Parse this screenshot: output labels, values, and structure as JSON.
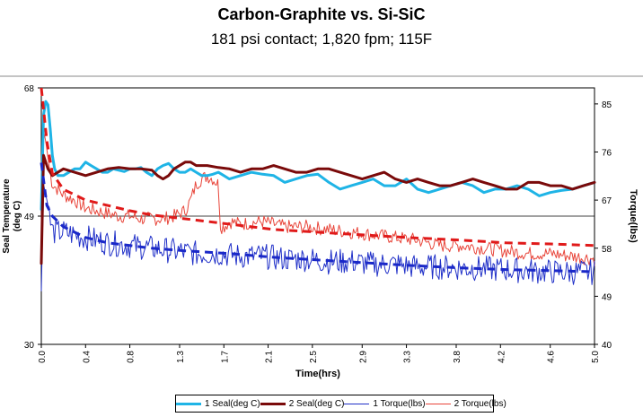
{
  "chart_data": {
    "type": "line",
    "title": "Carbon-Graphite vs. Si-SiC",
    "subtitle": "181 psi contact; 1,820 fpm; 115F",
    "xlabel": "Time(hrs)",
    "ylabel": "Seal Temperature\n(deg C)",
    "ylabel_lines": [
      "Seal Temperature",
      "(deg C)"
    ],
    "y2label": "Torque(lbs)",
    "xlim": [
      0,
      5.0
    ],
    "ylim": [
      30,
      68
    ],
    "y2lim": [
      40,
      88
    ],
    "x_ticks": [
      "0.0",
      "0.4",
      "0.8",
      "1.3",
      "1.7",
      "2.1",
      "2.5",
      "2.9",
      "3.3",
      "3.8",
      "4.2",
      "4.6",
      "5.0"
    ],
    "x_tick_values": [
      0.0,
      0.4,
      0.8,
      1.25,
      1.65,
      2.05,
      2.45,
      2.9,
      3.3,
      3.75,
      4.15,
      4.6,
      5.0
    ],
    "y_ticks": [
      "30",
      "49",
      "68"
    ],
    "y_tick_values": [
      30,
      49,
      68
    ],
    "y2_ticks": [
      "40",
      "49",
      "58",
      "67",
      "76",
      "85"
    ],
    "y2_tick_values": [
      40,
      49,
      58,
      67,
      76,
      85
    ],
    "grid_y": [
      49,
      68
    ],
    "series": [
      {
        "name": "1 Seal(deg C)",
        "axis": "left",
        "color": "#1fb4e6",
        "width": 3,
        "style": "solid",
        "x": [
          0,
          0.02,
          0.04,
          0.06,
          0.08,
          0.1,
          0.12,
          0.15,
          0.2,
          0.25,
          0.3,
          0.35,
          0.4,
          0.45,
          0.5,
          0.55,
          0.6,
          0.65,
          0.7,
          0.75,
          0.8,
          0.85,
          0.9,
          0.95,
          1.0,
          1.05,
          1.1,
          1.15,
          1.2,
          1.25,
          1.3,
          1.35,
          1.4,
          1.45,
          1.5,
          1.55,
          1.6,
          1.65,
          1.7,
          1.8,
          1.9,
          2.0,
          2.1,
          2.2,
          2.3,
          2.4,
          2.5,
          2.6,
          2.7,
          2.8,
          2.9,
          3.0,
          3.1,
          3.2,
          3.3,
          3.4,
          3.5,
          3.6,
          3.7,
          3.8,
          3.9,
          4.0,
          4.1,
          4.2,
          4.3,
          4.4,
          4.5,
          4.6,
          4.7,
          4.8,
          4.9,
          5.0
        ],
        "y": [
          50,
          64,
          66,
          65.5,
          62,
          58,
          56,
          55,
          55,
          55.5,
          56,
          56,
          57,
          56.5,
          56,
          55.5,
          55.5,
          56,
          55.8,
          55.6,
          56,
          56,
          56.2,
          55.5,
          55,
          56,
          56.5,
          56.8,
          56,
          55.5,
          55.5,
          56,
          55.5,
          55,
          55,
          55.2,
          55.5,
          55,
          54.5,
          55,
          55.5,
          55.2,
          55,
          54,
          54.5,
          55,
          55.2,
          54,
          53,
          53.5,
          54,
          54.5,
          53.5,
          53.5,
          54.5,
          53,
          52.5,
          53,
          53.5,
          54,
          53.5,
          52.5,
          53,
          53,
          53.5,
          53,
          52,
          52.5,
          52.8,
          53,
          53.5,
          54
        ]
      },
      {
        "name": "2 Seal(deg C)",
        "axis": "left",
        "color": "#7a0a0a",
        "width": 3,
        "style": "solid",
        "x": [
          0,
          0.02,
          0.04,
          0.06,
          0.08,
          0.1,
          0.15,
          0.2,
          0.3,
          0.4,
          0.5,
          0.6,
          0.7,
          0.8,
          0.9,
          1.0,
          1.05,
          1.1,
          1.15,
          1.2,
          1.25,
          1.3,
          1.35,
          1.4,
          1.5,
          1.6,
          1.7,
          1.8,
          1.9,
          2.0,
          2.1,
          2.2,
          2.3,
          2.4,
          2.5,
          2.6,
          2.7,
          2.8,
          2.9,
          3.0,
          3.1,
          3.2,
          3.3,
          3.4,
          3.5,
          3.6,
          3.7,
          3.8,
          3.9,
          4.0,
          4.1,
          4.2,
          4.3,
          4.4,
          4.5,
          4.6,
          4.7,
          4.8,
          4.9,
          5.0
        ],
        "y": [
          42,
          58,
          57,
          56,
          55.5,
          55,
          55.5,
          56,
          55.5,
          55,
          55.5,
          56,
          56.2,
          56,
          56,
          55.8,
          55,
          54.5,
          55,
          56,
          56.5,
          57,
          57,
          56.5,
          56.5,
          56.2,
          56,
          55.5,
          56,
          56,
          56.5,
          56,
          55.5,
          55.5,
          56,
          56,
          55.5,
          55,
          54.5,
          55,
          55.5,
          54.5,
          54,
          54.5,
          54,
          53.5,
          53.5,
          54,
          54.5,
          54,
          53.5,
          53,
          53,
          54,
          54,
          53.5,
          53.5,
          53,
          53.5,
          54
        ]
      },
      {
        "name": "1 Torque(lbs)",
        "axis": "right",
        "color": "#2030c8",
        "width": 1,
        "style": "noisy",
        "x": [
          0,
          0.02,
          0.04,
          0.06,
          0.08,
          0.1,
          0.2,
          0.3,
          0.4,
          0.5,
          0.6,
          0.8,
          1.0,
          1.2,
          1.4,
          1.6,
          1.8,
          2.0,
          2.2,
          2.4,
          2.6,
          2.8,
          3.0,
          3.2,
          3.4,
          3.6,
          3.8,
          4.0,
          4.2,
          4.4,
          4.6,
          4.8,
          5.0
        ],
        "y": [
          50,
          70,
          68,
          66,
          63,
          61,
          61,
          60.5,
          60,
          59.5,
          59,
          58.5,
          58,
          57.5,
          57,
          57,
          56.5,
          56.5,
          56,
          56,
          55.5,
          55.5,
          55,
          55,
          54.5,
          54.5,
          54.3,
          54.2,
          54,
          53.8,
          53.6,
          53.5,
          53.5
        ]
      },
      {
        "name": "1 Torque(lbs) trend",
        "axis": "right",
        "color": "#1a28c8",
        "width": 3,
        "style": "dashed",
        "x": [
          0,
          0.05,
          0.1,
          0.2,
          0.4,
          0.6,
          0.8,
          1.0,
          1.3,
          1.7,
          2.1,
          2.5,
          2.9,
          3.3,
          3.8,
          4.2,
          4.6,
          5.0
        ],
        "y": [
          74,
          66,
          64,
          62,
          60,
          59,
          58.5,
          58,
          57.5,
          57,
          56.3,
          55.8,
          55.3,
          54.8,
          54.3,
          54,
          53.8,
          53.6
        ]
      },
      {
        "name": "2 Torque(lbs)",
        "axis": "right",
        "color": "#e8453a",
        "width": 1,
        "style": "noisy",
        "x": [
          0,
          0.02,
          0.04,
          0.06,
          0.08,
          0.1,
          0.2,
          0.3,
          0.4,
          0.5,
          0.6,
          0.7,
          0.8,
          0.9,
          1.0,
          1.1,
          1.2,
          1.3,
          1.35,
          1.4,
          1.45,
          1.5,
          1.55,
          1.6,
          1.62,
          1.65,
          1.7,
          1.8,
          2.0,
          2.2,
          2.4,
          2.6,
          2.8,
          3.0,
          3.2,
          3.4,
          3.6,
          3.8,
          4.0,
          4.2,
          4.4,
          4.6,
          4.8,
          5.0
        ],
        "y": [
          70,
          80,
          78,
          75,
          72,
          70,
          68,
          67,
          65.5,
          65,
          64.5,
          64,
          64,
          63.5,
          63.5,
          63.5,
          64,
          65,
          67,
          70,
          71,
          71.5,
          71,
          70,
          62,
          62,
          63,
          62.5,
          63,
          62,
          62,
          61.5,
          61,
          60.5,
          60,
          59.5,
          58.5,
          58.5,
          58,
          57.5,
          57,
          57,
          56.5,
          56
        ]
      },
      {
        "name": "2 Torque(lbs) trend",
        "axis": "right",
        "color": "#e01a1a",
        "width": 3,
        "style": "dashed",
        "x": [
          0,
          0.05,
          0.1,
          0.2,
          0.4,
          0.6,
          0.8,
          1.0,
          1.3,
          1.7,
          2.1,
          2.5,
          2.9,
          3.3,
          3.8,
          4.2,
          4.6,
          5.0
        ],
        "y": [
          88,
          78,
          72,
          69,
          67,
          66,
          65,
          64.2,
          63.5,
          62.5,
          61.5,
          61,
          60.5,
          60,
          59.5,
          59,
          58.8,
          58.5
        ]
      }
    ],
    "legend": [
      "1 Seal(deg C)",
      "2 Seal(deg C)",
      "1 Torque(lbs)",
      "2 Torque(lbs)"
    ],
    "legend_position": "bottom"
  }
}
